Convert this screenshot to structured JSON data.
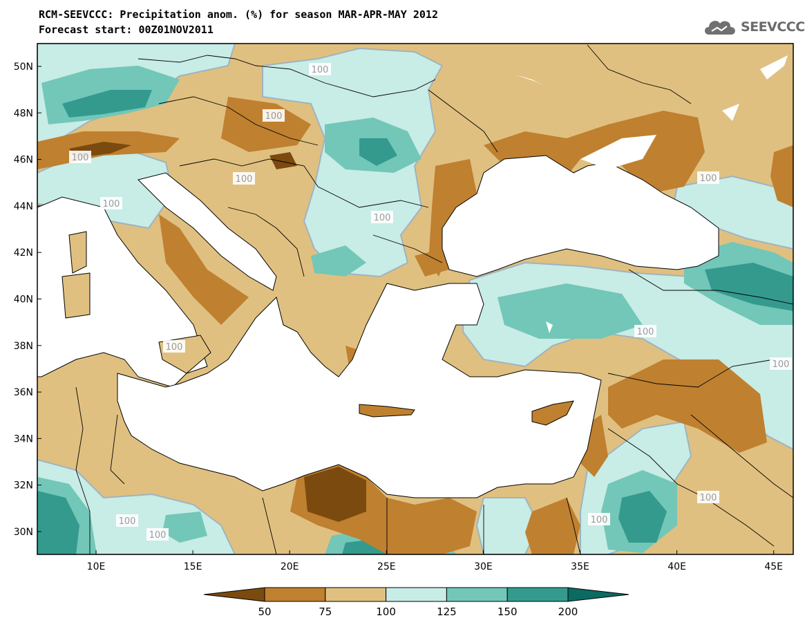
{
  "title": {
    "line1": "RCM-SEEVCCC: Precipitation anom. (%) for season MAR-APR-MAY 2012",
    "line2": "Forecast start: 00Z01NOV2011"
  },
  "logo": {
    "text": "SEEVCCC",
    "icon": "cloud-icon"
  },
  "map": {
    "type": "filled-contour-map",
    "region": "Eastern Mediterranean / Black Sea",
    "lon_range": [
      7,
      46
    ],
    "lat_range": [
      29,
      51
    ],
    "lat_ticks": [
      "50N",
      "48N",
      "46N",
      "44N",
      "42N",
      "40N",
      "38N",
      "36N",
      "34N",
      "32N",
      "30N"
    ],
    "lon_ticks": [
      "10E",
      "15E",
      "20E",
      "25E",
      "30E",
      "35E",
      "40E",
      "45E"
    ],
    "contour_labels": [
      "100",
      "100",
      "100",
      "100",
      "100",
      "100",
      "100",
      "100",
      "100",
      "100",
      "100",
      "100",
      "100",
      "100"
    ],
    "sea_color": "#ffffff",
    "border_color": "#000000"
  },
  "colorbar": {
    "levels": [
      "50",
      "75",
      "100",
      "125",
      "150",
      "200"
    ],
    "colors": [
      "#7b4a0f",
      "#bf8030",
      "#e0c080",
      "#c8ece6",
      "#72c7b8",
      "#349a8e",
      "#0b6b62"
    ]
  }
}
